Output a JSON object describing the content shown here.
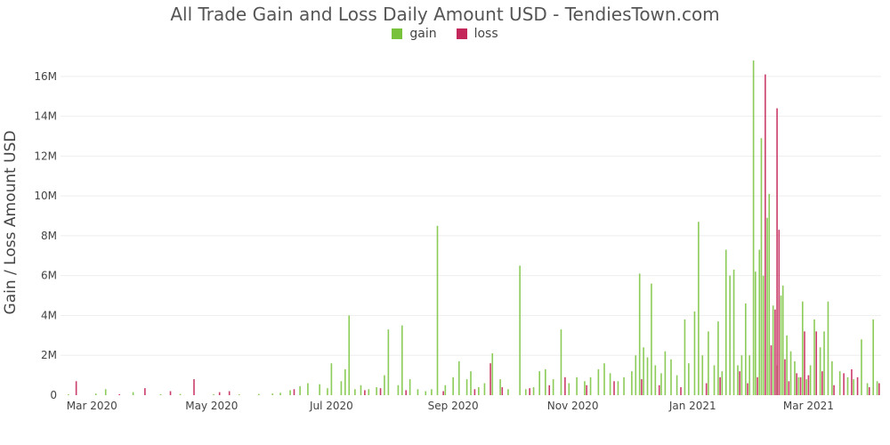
{
  "chart_data": {
    "type": "bar",
    "title": "All Trade Gain and Loss Daily Amount USD - TendiesTown.com",
    "xlabel": "",
    "ylabel": "Gain / Loss Amount USD",
    "x_tick_labels": [
      "Mar 2020",
      "May 2020",
      "Jul 2020",
      "Sep 2020",
      "Nov 2020",
      "Jan 2021",
      "Mar 2021"
    ],
    "x_ticks": [
      "2020-03-01",
      "2020-05-01",
      "2020-07-01",
      "2020-09-01",
      "2020-11-01",
      "2021-01-01",
      "2021-03-01"
    ],
    "x_range": [
      "2020-02-14",
      "2021-04-07"
    ],
    "y_tick_values": [
      0,
      2000000,
      4000000,
      6000000,
      8000000,
      10000000,
      12000000,
      14000000,
      16000000
    ],
    "y_tick_labels": [
      "0",
      "2M",
      "4M",
      "6M",
      "8M",
      "10M",
      "12M",
      "14M",
      "16M"
    ],
    "ylim": [
      0,
      17600000
    ],
    "grid": "horizontal",
    "legend_position": "top-center",
    "series": [
      {
        "name": "gain",
        "color": "#77c23a",
        "points": [
          [
            "2020-02-18",
            40000
          ],
          [
            "2020-03-03",
            80000
          ],
          [
            "2020-03-08",
            300000
          ],
          [
            "2020-03-22",
            150000
          ],
          [
            "2020-04-05",
            50000
          ],
          [
            "2020-04-15",
            60000
          ],
          [
            "2020-05-02",
            50000
          ],
          [
            "2020-05-15",
            40000
          ],
          [
            "2020-05-25",
            60000
          ],
          [
            "2020-06-01",
            80000
          ],
          [
            "2020-06-05",
            120000
          ],
          [
            "2020-06-10",
            250000
          ],
          [
            "2020-06-15",
            450000
          ],
          [
            "2020-06-19",
            600000
          ],
          [
            "2020-06-25",
            550000
          ],
          [
            "2020-06-29",
            350000
          ],
          [
            "2020-07-01",
            1600000
          ],
          [
            "2020-07-06",
            700000
          ],
          [
            "2020-07-08",
            1300000
          ],
          [
            "2020-07-10",
            4000000
          ],
          [
            "2020-07-13",
            300000
          ],
          [
            "2020-07-16",
            500000
          ],
          [
            "2020-07-20",
            300000
          ],
          [
            "2020-07-24",
            400000
          ],
          [
            "2020-07-28",
            1000000
          ],
          [
            "2020-07-30",
            3300000
          ],
          [
            "2020-08-04",
            500000
          ],
          [
            "2020-08-06",
            3500000
          ],
          [
            "2020-08-10",
            800000
          ],
          [
            "2020-08-14",
            300000
          ],
          [
            "2020-08-18",
            200000
          ],
          [
            "2020-08-21",
            300000
          ],
          [
            "2020-08-24",
            8500000
          ],
          [
            "2020-08-28",
            500000
          ],
          [
            "2020-09-01",
            900000
          ],
          [
            "2020-09-04",
            1700000
          ],
          [
            "2020-09-08",
            800000
          ],
          [
            "2020-09-10",
            1200000
          ],
          [
            "2020-09-14",
            400000
          ],
          [
            "2020-09-17",
            600000
          ],
          [
            "2020-09-21",
            2100000
          ],
          [
            "2020-09-25",
            800000
          ],
          [
            "2020-09-29",
            300000
          ],
          [
            "2020-10-05",
            6500000
          ],
          [
            "2020-10-08",
            300000
          ],
          [
            "2020-10-12",
            400000
          ],
          [
            "2020-10-15",
            1200000
          ],
          [
            "2020-10-18",
            1300000
          ],
          [
            "2020-10-22",
            800000
          ],
          [
            "2020-10-26",
            3300000
          ],
          [
            "2020-10-30",
            600000
          ],
          [
            "2020-11-03",
            900000
          ],
          [
            "2020-11-07",
            700000
          ],
          [
            "2020-11-10",
            900000
          ],
          [
            "2020-11-14",
            1300000
          ],
          [
            "2020-11-17",
            1600000
          ],
          [
            "2020-11-20",
            1100000
          ],
          [
            "2020-11-24",
            700000
          ],
          [
            "2020-11-27",
            900000
          ],
          [
            "2020-12-01",
            1200000
          ],
          [
            "2020-12-03",
            2000000
          ],
          [
            "2020-12-05",
            6100000
          ],
          [
            "2020-12-07",
            2400000
          ],
          [
            "2020-12-09",
            1900000
          ],
          [
            "2020-12-11",
            5600000
          ],
          [
            "2020-12-13",
            1500000
          ],
          [
            "2020-12-16",
            1100000
          ],
          [
            "2020-12-18",
            2200000
          ],
          [
            "2020-12-21",
            1800000
          ],
          [
            "2020-12-24",
            1000000
          ],
          [
            "2020-12-28",
            3800000
          ],
          [
            "2020-12-30",
            1600000
          ],
          [
            "2021-01-02",
            4200000
          ],
          [
            "2021-01-04",
            8700000
          ],
          [
            "2021-01-06",
            2000000
          ],
          [
            "2021-01-09",
            3200000
          ],
          [
            "2021-01-12",
            1500000
          ],
          [
            "2021-01-14",
            3700000
          ],
          [
            "2021-01-16",
            1200000
          ],
          [
            "2021-01-18",
            7300000
          ],
          [
            "2021-01-20",
            6000000
          ],
          [
            "2021-01-22",
            6300000
          ],
          [
            "2021-01-24",
            1500000
          ],
          [
            "2021-01-26",
            2000000
          ],
          [
            "2021-01-28",
            4600000
          ],
          [
            "2021-01-30",
            2000000
          ],
          [
            "2021-02-01",
            16800000
          ],
          [
            "2021-02-02",
            6200000
          ],
          [
            "2021-02-04",
            7300000
          ],
          [
            "2021-02-05",
            12900000
          ],
          [
            "2021-02-06",
            6000000
          ],
          [
            "2021-02-08",
            8900000
          ],
          [
            "2021-02-09",
            10100000
          ],
          [
            "2021-02-11",
            4500000
          ],
          [
            "2021-02-13",
            1500000
          ],
          [
            "2021-02-15",
            5000000
          ],
          [
            "2021-02-16",
            5500000
          ],
          [
            "2021-02-18",
            3000000
          ],
          [
            "2021-02-20",
            2200000
          ],
          [
            "2021-02-22",
            1700000
          ],
          [
            "2021-02-24",
            900000
          ],
          [
            "2021-02-26",
            4700000
          ],
          [
            "2021-02-28",
            800000
          ],
          [
            "2021-03-02",
            1500000
          ],
          [
            "2021-03-04",
            3800000
          ],
          [
            "2021-03-07",
            2400000
          ],
          [
            "2021-03-09",
            3200000
          ],
          [
            "2021-03-11",
            4700000
          ],
          [
            "2021-03-13",
            1700000
          ],
          [
            "2021-03-17",
            1200000
          ],
          [
            "2021-03-21",
            900000
          ],
          [
            "2021-03-24",
            800000
          ],
          [
            "2021-03-28",
            2800000
          ],
          [
            "2021-03-31",
            600000
          ],
          [
            "2021-04-03",
            3800000
          ],
          [
            "2021-04-05",
            700000
          ]
        ]
      },
      {
        "name": "loss",
        "color": "#c4285a",
        "points": [
          [
            "2020-02-22",
            700000
          ],
          [
            "2020-03-15",
            50000
          ],
          [
            "2020-03-28",
            350000
          ],
          [
            "2020-04-10",
            200000
          ],
          [
            "2020-04-22",
            800000
          ],
          [
            "2020-05-05",
            150000
          ],
          [
            "2020-05-10",
            200000
          ],
          [
            "2020-06-12",
            300000
          ],
          [
            "2020-07-18",
            250000
          ],
          [
            "2020-07-26",
            350000
          ],
          [
            "2020-08-08",
            250000
          ],
          [
            "2020-08-27",
            200000
          ],
          [
            "2020-09-12",
            300000
          ],
          [
            "2020-09-20",
            1600000
          ],
          [
            "2020-09-26",
            400000
          ],
          [
            "2020-10-10",
            350000
          ],
          [
            "2020-10-20",
            500000
          ],
          [
            "2020-10-28",
            900000
          ],
          [
            "2020-11-08",
            500000
          ],
          [
            "2020-11-22",
            700000
          ],
          [
            "2020-12-06",
            800000
          ],
          [
            "2020-12-15",
            500000
          ],
          [
            "2020-12-26",
            400000
          ],
          [
            "2021-01-08",
            600000
          ],
          [
            "2021-01-15",
            900000
          ],
          [
            "2021-01-25",
            1200000
          ],
          [
            "2021-01-29",
            600000
          ],
          [
            "2021-02-03",
            900000
          ],
          [
            "2021-02-07",
            16100000
          ],
          [
            "2021-02-10",
            2500000
          ],
          [
            "2021-02-12",
            4300000
          ],
          [
            "2021-02-13",
            14400000
          ],
          [
            "2021-02-14",
            8300000
          ],
          [
            "2021-02-17",
            1800000
          ],
          [
            "2021-02-19",
            700000
          ],
          [
            "2021-02-23",
            1100000
          ],
          [
            "2021-02-25",
            900000
          ],
          [
            "2021-02-27",
            3200000
          ],
          [
            "2021-03-01",
            1000000
          ],
          [
            "2021-03-05",
            3200000
          ],
          [
            "2021-03-08",
            1200000
          ],
          [
            "2021-03-14",
            500000
          ],
          [
            "2021-03-19",
            1100000
          ],
          [
            "2021-03-23",
            1300000
          ],
          [
            "2021-03-26",
            900000
          ],
          [
            "2021-04-01",
            400000
          ],
          [
            "2021-04-06",
            600000
          ]
        ]
      }
    ]
  }
}
